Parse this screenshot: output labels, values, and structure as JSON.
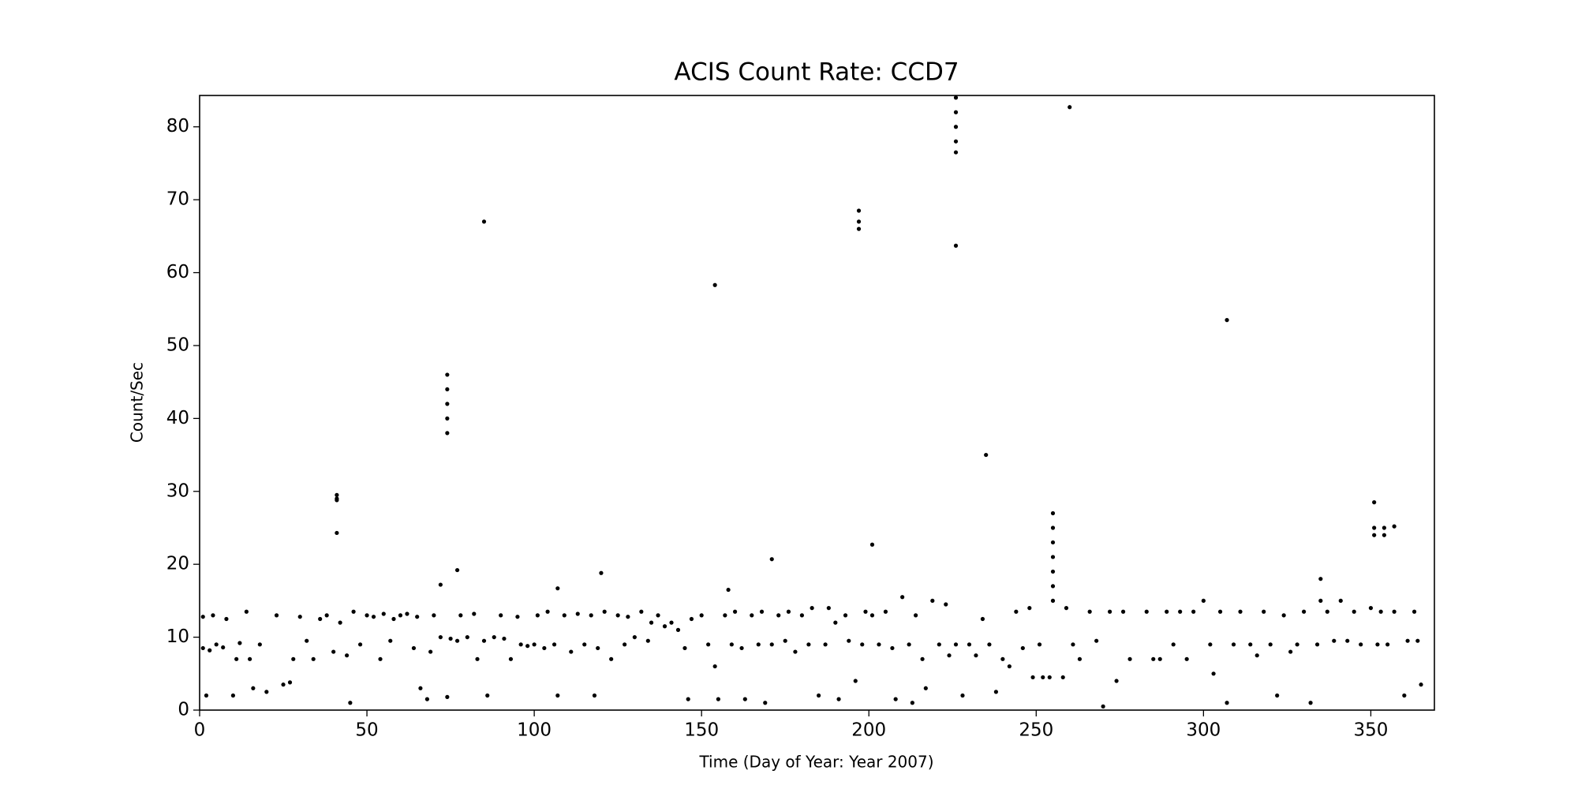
{
  "chart_data": {
    "type": "scatter",
    "title": "ACIS Count Rate: CCD7",
    "x_label": "Time (Day of Year: Year 2007)",
    "y_label": "Count/Sec",
    "color": "#000000",
    "grid": false,
    "xlim": [
      0,
      369
    ],
    "ylim": [
      0,
      84.3
    ],
    "xticks": [
      0,
      50,
      100,
      150,
      200,
      250,
      300,
      350
    ],
    "yticks": [
      0,
      10,
      20,
      30,
      40,
      50,
      60,
      70,
      80
    ],
    "x": [
      1,
      1,
      2,
      3,
      4,
      5,
      7,
      8,
      10,
      11,
      12,
      14,
      15,
      16,
      18,
      20,
      23,
      25,
      27,
      28,
      30,
      32,
      34,
      36,
      38,
      40,
      42,
      44,
      45,
      46,
      48,
      50,
      52,
      54,
      55,
      57,
      58,
      60,
      62,
      64,
      65,
      66,
      68,
      69,
      70,
      72,
      74,
      75,
      77,
      78,
      80,
      82,
      83,
      85,
      86,
      88,
      90,
      91,
      93,
      95,
      96,
      98,
      100,
      101,
      103,
      104,
      106,
      107,
      109,
      111,
      113,
      115,
      117,
      118,
      119,
      121,
      123,
      125,
      127,
      128,
      130,
      132,
      134,
      135,
      137,
      139,
      141,
      143,
      145,
      146,
      147,
      150,
      152,
      154,
      155,
      157,
      159,
      160,
      162,
      163,
      165,
      167,
      168,
      169,
      171,
      173,
      175,
      176,
      178,
      180,
      182,
      183,
      185,
      187,
      188,
      190,
      191,
      193,
      194,
      196,
      198,
      199,
      201,
      203,
      205,
      207,
      208,
      210,
      212,
      213,
      214,
      216,
      217,
      219,
      221,
      223,
      224,
      226,
      228,
      230,
      232,
      234,
      236,
      238,
      240,
      242,
      244,
      246,
      248,
      249,
      251,
      252,
      254,
      258,
      259,
      261,
      263,
      266,
      268,
      270,
      272,
      274,
      276,
      278,
      283,
      285,
      287,
      289,
      291,
      293,
      295,
      297,
      300,
      302,
      303,
      305,
      307,
      309,
      311,
      314,
      316,
      318,
      320,
      322,
      324,
      326,
      328,
      330,
      332,
      334,
      335,
      337,
      339,
      341,
      343,
      345,
      347,
      350,
      352,
      353,
      355,
      357,
      360,
      361,
      363,
      364,
      365,
      41,
      41,
      41,
      41,
      74,
      74,
      74,
      74,
      74,
      85,
      154,
      197,
      197,
      197,
      226,
      226,
      226,
      226,
      226,
      226,
      235,
      260,
      307,
      255,
      255,
      255,
      255,
      255,
      255,
      255,
      351,
      351,
      351,
      354,
      354,
      357,
      201,
      171,
      120,
      77,
      72,
      335,
      158,
      107
    ],
    "values": [
      8.5,
      12.8,
      2,
      8.2,
      13,
      9,
      8.6,
      12.5,
      2,
      7,
      9.2,
      13.5,
      7,
      3,
      9,
      2.5,
      13,
      3.5,
      3.8,
      7,
      12.8,
      9.5,
      7,
      12.5,
      13,
      8,
      12,
      7.5,
      1,
      13.5,
      9,
      13,
      12.8,
      7,
      13.2,
      9.5,
      12.5,
      13,
      13.2,
      8.5,
      12.8,
      3,
      1.5,
      8,
      13,
      10,
      1.8,
      9.8,
      9.5,
      13,
      10,
      13.2,
      7,
      9.5,
      2,
      10,
      13,
      9.8,
      7,
      12.8,
      9,
      8.8,
      9,
      13,
      8.5,
      13.5,
      9,
      2,
      13,
      8,
      13.2,
      9,
      13,
      2,
      8.5,
      13.5,
      7,
      13,
      9,
      12.8,
      10,
      13.5,
      9.5,
      12,
      13,
      11.5,
      12,
      11,
      8.5,
      1.5,
      12.5,
      13,
      9,
      6,
      1.5,
      13,
      9,
      13.5,
      8.5,
      1.5,
      13,
      9,
      13.5,
      1,
      9,
      13,
      9.5,
      13.5,
      8,
      13,
      9,
      14,
      2,
      9,
      14,
      12,
      1.5,
      13,
      9.5,
      4,
      9,
      13.5,
      13,
      9,
      13.5,
      8.5,
      1.5,
      15.5,
      9,
      1,
      13,
      7,
      3,
      15,
      9,
      14.5,
      7.5,
      9,
      2,
      9,
      7.5,
      12.5,
      9,
      2.5,
      7,
      6,
      13.5,
      8.5,
      14,
      4.5,
      9,
      4.5,
      4.5,
      4.5,
      14,
      9,
      7,
      13.5,
      9.5,
      0.5,
      13.5,
      4,
      13.5,
      7,
      13.5,
      7,
      7,
      13.5,
      9,
      13.5,
      7,
      13.5,
      15,
      9,
      5,
      13.5,
      1,
      9,
      13.5,
      9,
      7.5,
      13.5,
      9,
      2,
      13,
      8,
      9,
      13.5,
      1,
      9,
      15,
      13.5,
      9.5,
      15,
      9.5,
      13.5,
      9,
      14,
      9,
      13.5,
      9,
      13.5,
      2,
      9.5,
      13.5,
      9.5,
      3.5,
      29.5,
      29,
      28.8,
      24.3,
      46,
      44,
      42,
      40,
      38,
      67,
      58.3,
      68.5,
      67,
      66,
      84,
      82,
      80,
      78,
      76.5,
      63.7,
      35,
      82.7,
      53.5,
      27,
      25,
      23,
      21,
      19,
      17,
      15,
      28.5,
      25,
      24,
      25,
      24,
      25.2,
      22.7,
      20.7,
      18.8,
      19.2,
      17.2,
      18,
      16.5,
      16.7
    ]
  }
}
